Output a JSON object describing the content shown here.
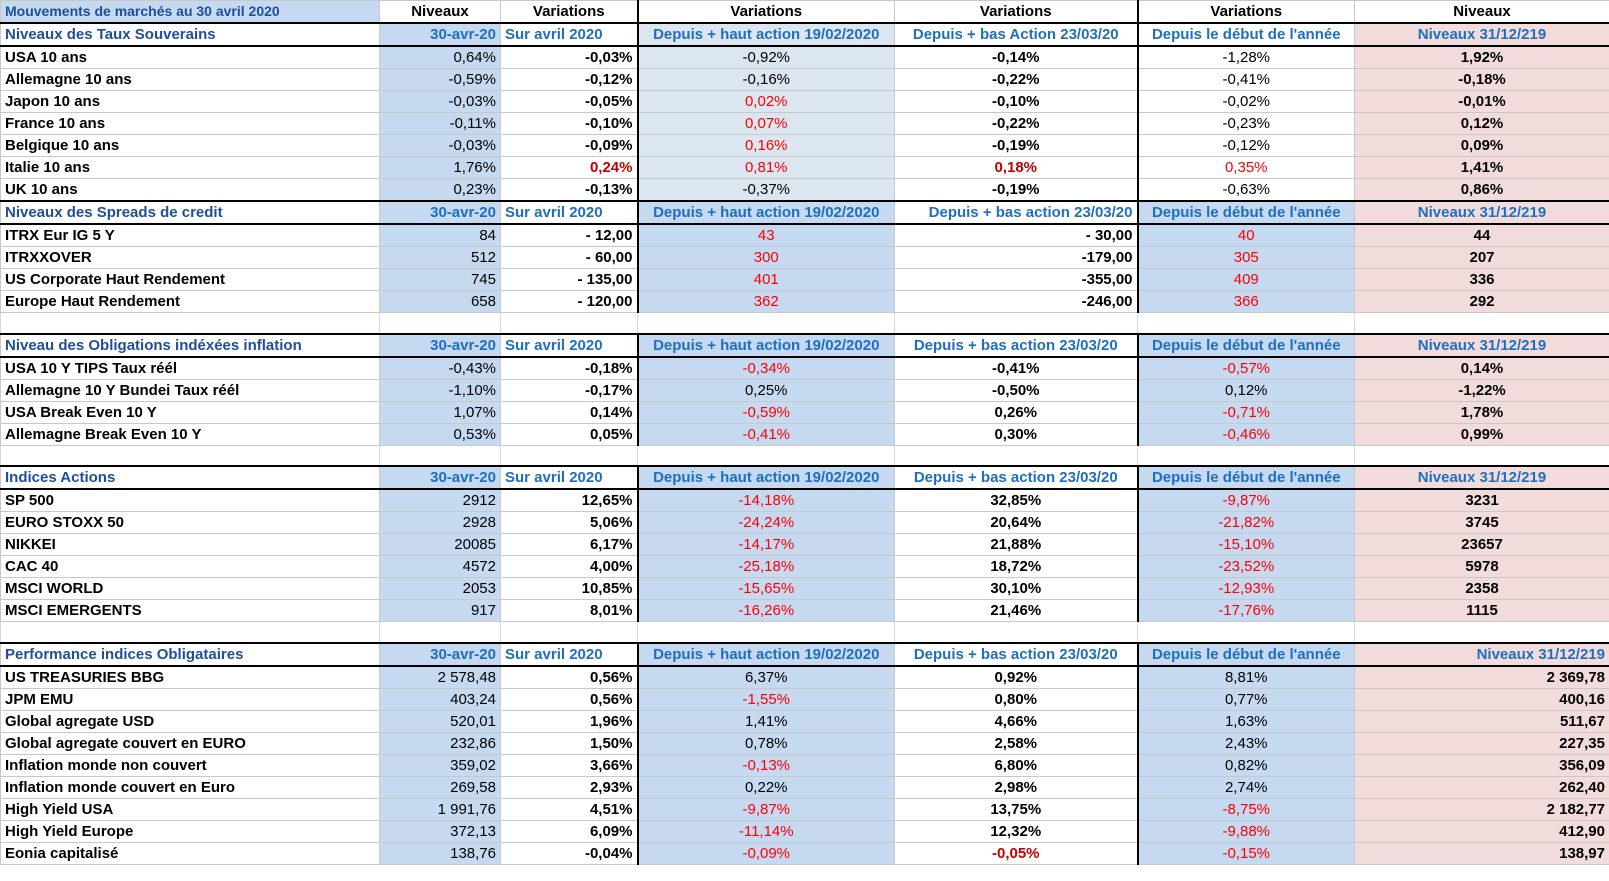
{
  "header": {
    "title": "Mouvements de marchés au 30 avril 2020",
    "columns": [
      "Niveaux",
      "Variations",
      "Variations",
      "Variations",
      "Variations",
      "Niveaux"
    ]
  },
  "sections": [
    {
      "key": "sov",
      "header": [
        "Niveaux des Taux Souverains",
        "30-avr-20",
        "Sur avril 2020",
        "Depuis + haut action 19/02/2020",
        "Depuis + bas  Action 23/03/20",
        "Depuis le début de l'année",
        "Niveaux 31/12/219"
      ],
      "rows": [
        [
          "USA 10 ans",
          "0,64%",
          "-0,03%",
          "-0,92%",
          "-0,14%",
          "-1,28%",
          "1,92%"
        ],
        [
          "Allemagne 10 ans",
          "-0,59%",
          "-0,12%",
          "-0,16%",
          "-0,22%",
          "-0,41%",
          "-0,18%"
        ],
        [
          "Japon 10 ans",
          "-0,03%",
          "-0,05%",
          "0,02%",
          "-0,10%",
          "-0,02%",
          "-0,01%"
        ],
        [
          "France 10 ans",
          "-0,11%",
          "-0,10%",
          "0,07%",
          "-0,22%",
          "-0,23%",
          "0,12%"
        ],
        [
          "Belgique 10 ans",
          "-0,03%",
          "-0,09%",
          "0,16%",
          "-0,19%",
          "-0,12%",
          "0,09%"
        ],
        [
          "Italie 10 ans",
          "1,76%",
          "0,24%",
          "0,81%",
          "0,18%",
          "0,35%",
          "1,41%"
        ],
        [
          "UK 10 ans",
          "0,23%",
          "-0,13%",
          "-0,37%",
          "-0,19%",
          "-0,63%",
          "0,86%"
        ]
      ],
      "blank_after": false
    },
    {
      "key": "spread",
      "header": [
        "Niveaux des Spreads de credit",
        "30-avr-20",
        "Sur avril 2020",
        "Depuis + haut action 19/02/2020",
        "Depuis + bas  action 23/03/20",
        "Depuis le début de l'année",
        "Niveaux 31/12/219"
      ],
      "rows": [
        [
          "ITRX Eur IG 5 Y",
          "84",
          "-      12,00",
          "43",
          "-  30,00",
          "40",
          "44"
        ],
        [
          "ITRXXOVER",
          "512",
          "-      60,00",
          "300",
          "-179,00",
          "305",
          "207"
        ],
        [
          "US Corporate Haut Rendement",
          "745",
          "-    135,00",
          "401",
          "-355,00",
          "409",
          "336"
        ],
        [
          "Europe Haut Rendement",
          "658",
          "-    120,00",
          "362",
          "-246,00",
          "366",
          "292"
        ]
      ],
      "blank_after": true
    },
    {
      "key": "infl",
      "header": [
        "Niveau des Obligations indéxées inflation",
        "30-avr-20",
        "Sur avril 2020",
        "Depuis + haut action 19/02/2020",
        "Depuis + bas  action 23/03/20",
        "Depuis le début de l'année",
        "Niveaux 31/12/219"
      ],
      "rows": [
        [
          "USA 10 Y TIPS Taux réél",
          "-0,43%",
          "-0,18%",
          "-0,34%",
          "-0,41%",
          "-0,57%",
          "0,14%"
        ],
        [
          "Allemagne 10 Y Bundei Taux réél",
          "-1,10%",
          "-0,17%",
          "0,25%",
          "-0,50%",
          "0,12%",
          "-1,22%"
        ],
        [
          "USA Break Even 10 Y",
          "1,07%",
          "0,14%",
          "-0,59%",
          "0,26%",
          "-0,71%",
          "1,78%"
        ],
        [
          "Allemagne Break Even 10 Y",
          "0,53%",
          "0,05%",
          "-0,41%",
          "0,30%",
          "-0,46%",
          "0,99%"
        ]
      ],
      "blank_after": true
    },
    {
      "key": "eq",
      "header": [
        "Indices Actions",
        "30-avr-20",
        "Sur avril 2020",
        "Depuis + haut action 19/02/2020",
        "Depuis + bas  action 23/03/20",
        "Depuis le début de l'année",
        "Niveaux 31/12/219"
      ],
      "rows": [
        [
          "SP 500",
          "2912",
          "12,65%",
          "-14,18%",
          "32,85%",
          "-9,87%",
          "3231"
        ],
        [
          "EURO STOXX 50",
          "2928",
          "5,06%",
          "-24,24%",
          "20,64%",
          "-21,82%",
          "3745"
        ],
        [
          "NIKKEI",
          "20085",
          "6,17%",
          "-14,17%",
          "21,88%",
          "-15,10%",
          "23657"
        ],
        [
          "CAC 40",
          "4572",
          "4,00%",
          "-25,18%",
          "18,72%",
          "-23,52%",
          "5978"
        ],
        [
          "MSCI WORLD",
          "2053",
          "10,85%",
          "-15,65%",
          "30,10%",
          "-12,93%",
          "2358"
        ],
        [
          "MSCI EMERGENTS",
          "917",
          "8,01%",
          "-16,26%",
          "21,46%",
          "-17,76%",
          "1115"
        ]
      ],
      "blank_after": true
    },
    {
      "key": "oblig",
      "header": [
        "Performance indices Obligataires",
        "30-avr-20",
        "Sur avril 2020",
        "Depuis + haut action 19/02/2020",
        "Depuis + bas  action 23/03/20",
        "Depuis le début de l'année",
        "Niveaux 31/12/219"
      ],
      "rows": [
        [
          "US TREASURIES BBG",
          "2 578,48",
          "0,56%",
          "6,37%",
          "0,92%",
          "8,81%",
          "2 369,78"
        ],
        [
          "JPM EMU",
          "403,24",
          "0,56%",
          "-1,55%",
          "0,80%",
          "0,77%",
          "400,16"
        ],
        [
          "Global agregate USD",
          "520,01",
          "1,96%",
          "1,41%",
          "4,66%",
          "1,63%",
          "511,67"
        ],
        [
          "Global agregate couvert en EURO",
          "232,86",
          "1,50%",
          "0,78%",
          "2,58%",
          "2,43%",
          "227,35"
        ],
        [
          "Inflation monde non couvert",
          "359,02",
          "3,66%",
          "-0,13%",
          "6,80%",
          "0,82%",
          "356,09"
        ],
        [
          "Inflation monde couvert en Euro",
          "269,58",
          "2,93%",
          "0,22%",
          "2,98%",
          "2,74%",
          "262,40"
        ],
        [
          "High Yield USA",
          "1 991,76",
          "4,51%",
          "-9,87%",
          "13,75%",
          "-8,75%",
          "2 182,77"
        ],
        [
          "High Yield Europe",
          "372,13",
          "6,09%",
          "-11,14%",
          "12,32%",
          "-9,88%",
          "412,90"
        ],
        [
          "Eonia capitalisé",
          "138,76",
          "-0,04%",
          "-0,09%",
          "-0,05%",
          "-0,15%",
          "138,97"
        ]
      ],
      "blank_after": false
    }
  ],
  "colors": {
    "blue_fill": "#c5d9f1",
    "pink_fill": "#f2dcdb",
    "header_text": "#1f6fbf",
    "negative_text": "#ff0000",
    "dark_red_text": "#c00000"
  }
}
